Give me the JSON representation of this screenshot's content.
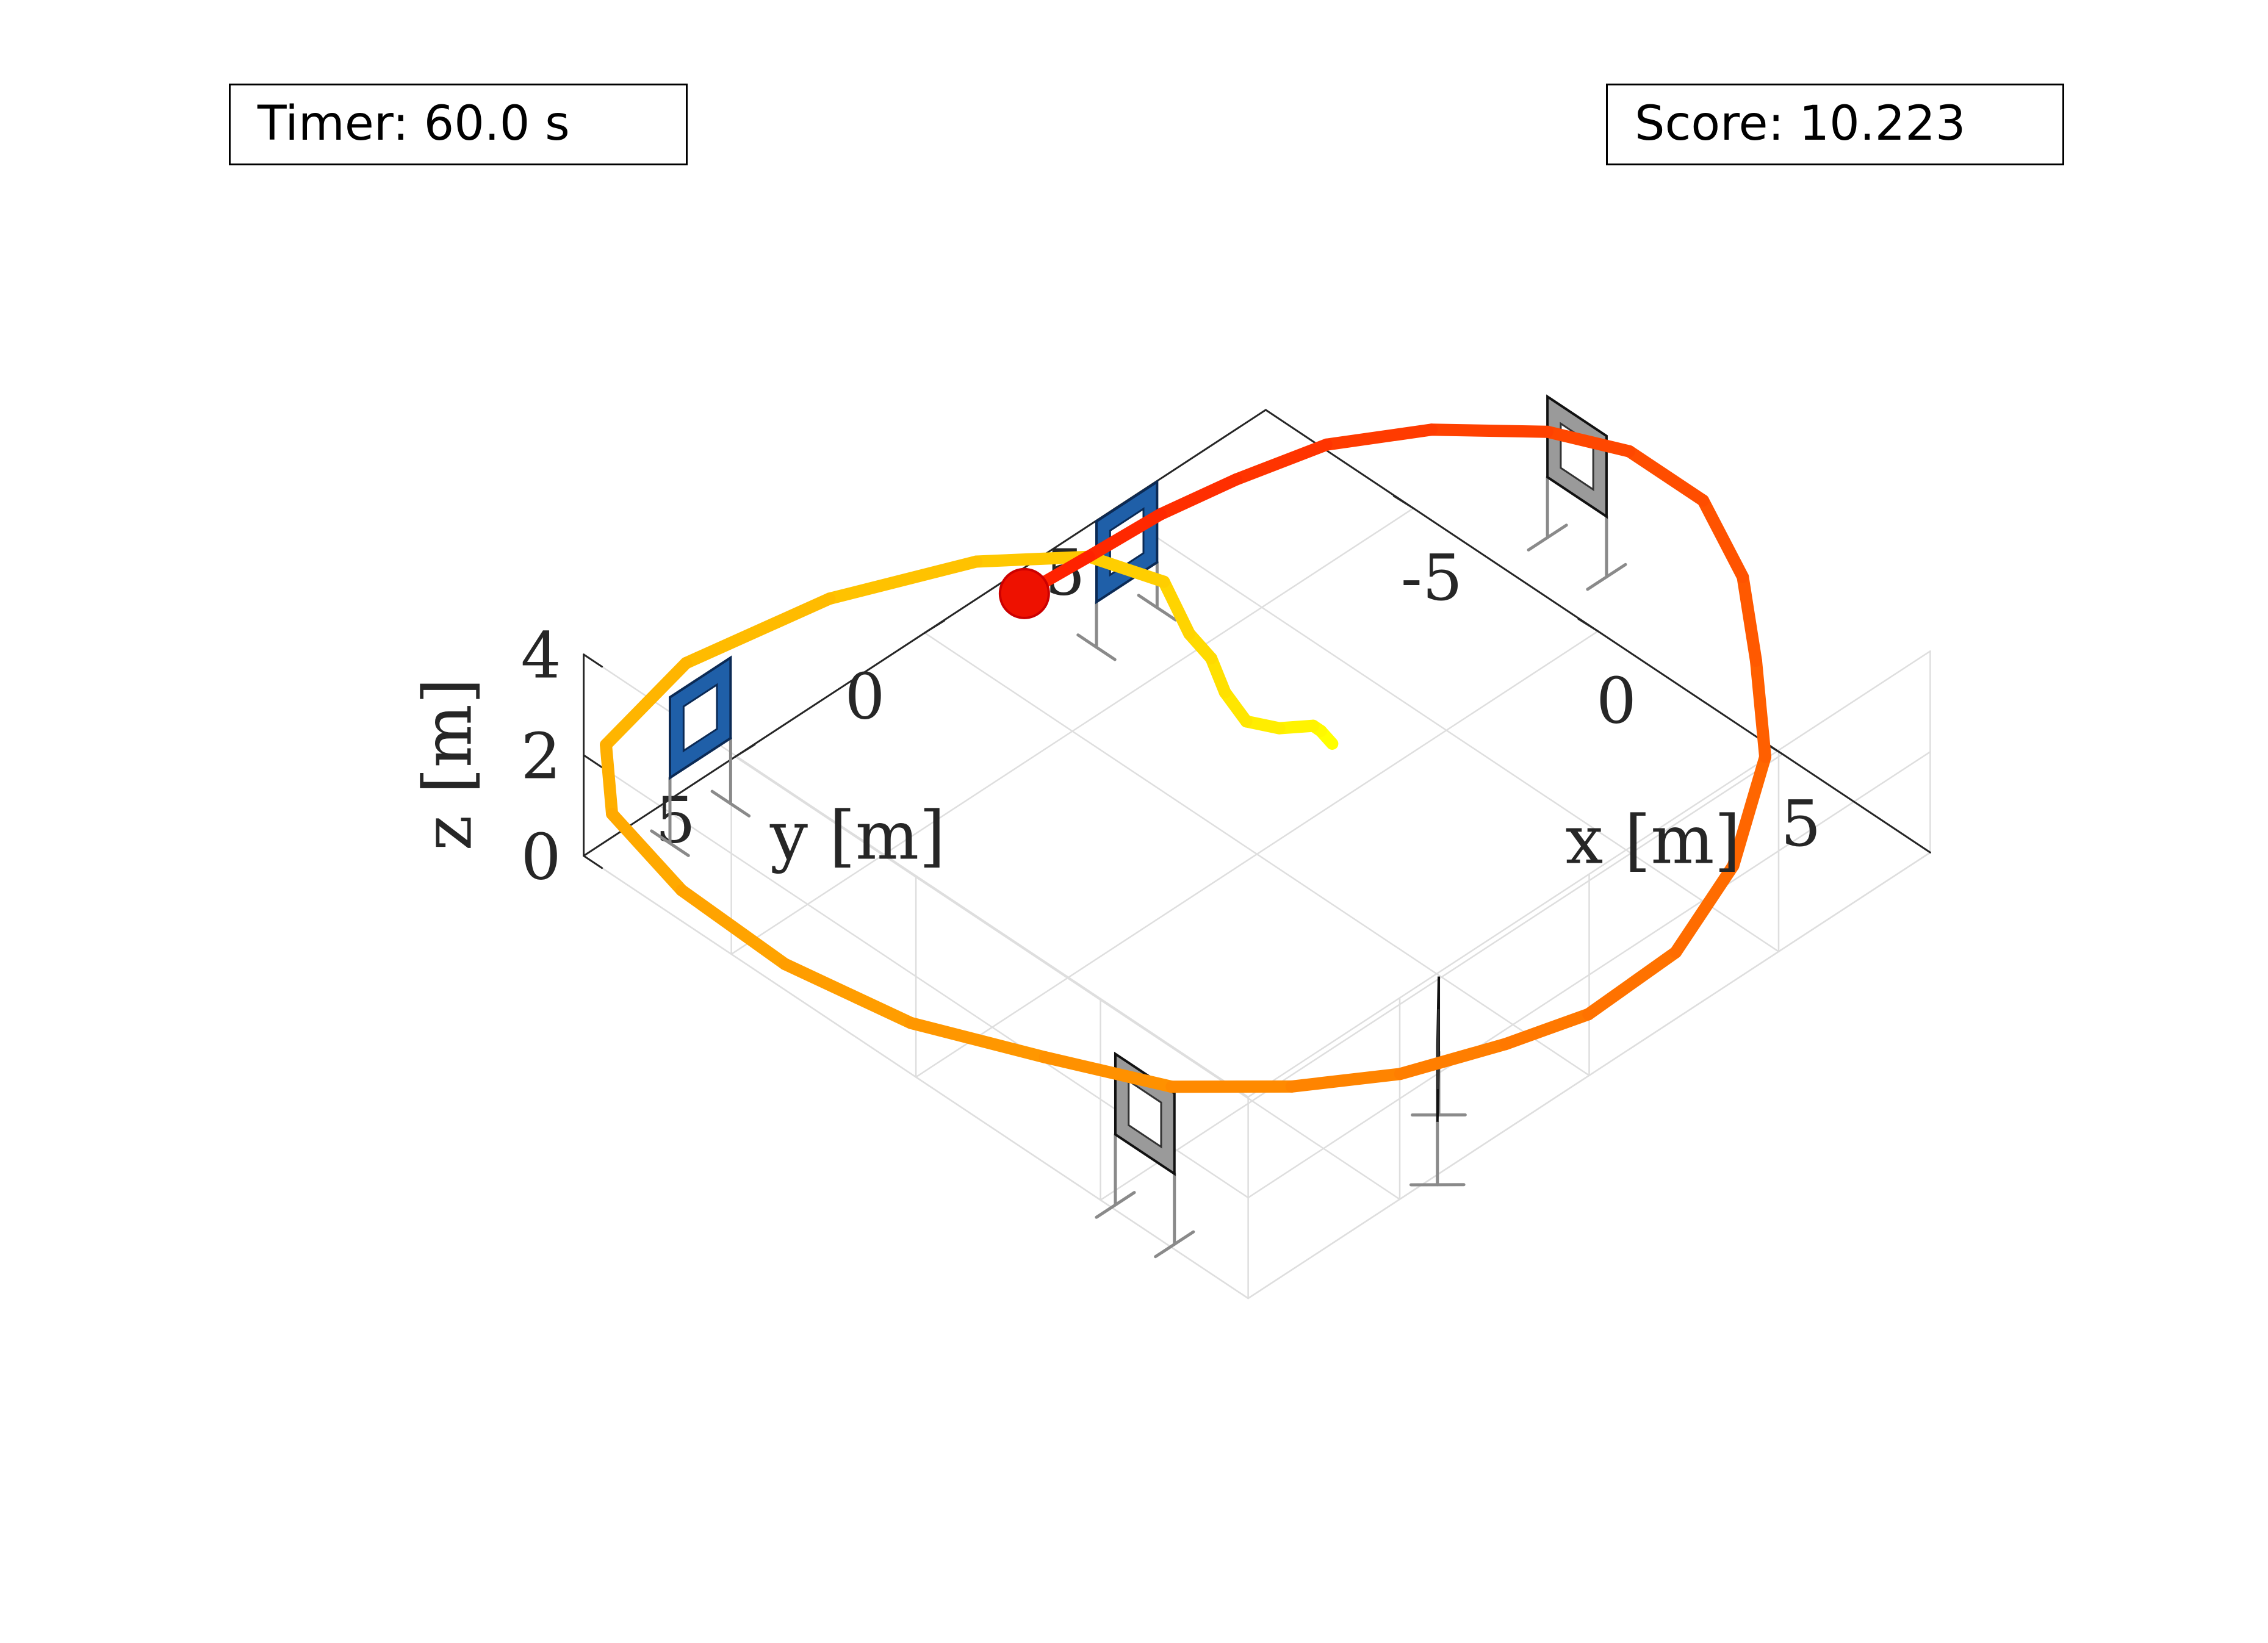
{
  "hud": {
    "timer_label": "Timer: 60.0 s",
    "score_label": "Score: 10.223"
  },
  "chart_data": {
    "type": "line3d",
    "title": "",
    "xlabel": "x [m]",
    "ylabel": "y [m]",
    "zlabel": "z [m]",
    "xlim": [
      -9,
      9
    ],
    "ylim": [
      -9,
      9
    ],
    "zlim": [
      0,
      4
    ],
    "xticks": [
      {
        "v": -5,
        "label": "-5"
      },
      {
        "v": 0,
        "label": "0"
      },
      {
        "v": 5,
        "label": "5"
      }
    ],
    "yticks": [
      {
        "v": -5,
        "label": "-5"
      },
      {
        "v": 0,
        "label": "0"
      },
      {
        "v": 5,
        "label": "5"
      }
    ],
    "zticks": [
      {
        "v": 0,
        "label": "0"
      },
      {
        "v": 2,
        "label": "2"
      },
      {
        "v": 4,
        "label": "4"
      }
    ],
    "grid": true,
    "trajectory": {
      "colormap": "autumn (yellow to red, by time)",
      "x": [
        0.5,
        0.5,
        0.6,
        0.3,
        -0.8,
        -2.2,
        -3.6,
        -4.5,
        -5.6,
        -6.6,
        -7.6,
        -8.5,
        -9.0,
        -8.5,
        -7.0,
        -4.5,
        -1.7,
        1.2,
        3.7,
        5.8,
        7.3,
        8.5,
        9.3,
        9.8,
        9.7,
        8.9,
        7.2,
        5.0,
        3.0,
        1.0,
        -1.0,
        -2.5,
        -4.2,
        -5.2,
        -5.8,
        -6.1,
        -6.3,
        -6.3
      ],
      "y": [
        -1.5,
        -1.2,
        -0.9,
        -0.3,
        -0.5,
        -1.3,
        -2.3,
        -2.6,
        -3.0,
        -2.0,
        0.0,
        3.0,
        6.3,
        8.9,
        10.2,
        10.8,
        10.8,
        10.3,
        9.2,
        7.9,
        6.2,
        4.5,
        2.5,
        0.8,
        -1.6,
        -3.9,
        -6.4,
        -8.3,
        -9.9,
        -10.8,
        -10.8,
        -10.1,
        -8.7,
        -6.9,
        -5.1,
        -3.4,
        -1.7,
        0.0
      ],
      "z": [
        1.7,
        2.1,
        2.4,
        2.5,
        2.0,
        1.5,
        1.0,
        0.9,
        1.2,
        1.7,
        2.1,
        2.4,
        2.5,
        2.4,
        2.4,
        2.4,
        2.3,
        2.3,
        2.3,
        2.1,
        2.0,
        2.0,
        2.0,
        2.0,
        2.0,
        2.2,
        2.3,
        2.2,
        2.1,
        2.2,
        2.2,
        2.2,
        2.1,
        2.2,
        2.1,
        2.1,
        2.0,
        2.1
      ]
    },
    "current_position": {
      "x": -6.3,
      "y": 0.0,
      "z": 2.1,
      "color": "#ee1100"
    },
    "gates": [
      {
        "type": "blue-square",
        "x": -6.4,
        "y": -2.8,
        "z": 1.7,
        "yaw_deg": 90
      },
      {
        "type": "thin-gray",
        "x": -1.8,
        "y": -10.2,
        "z": 2.0,
        "yaw_deg": 0
      },
      {
        "type": "wide-gray",
        "x": 8.5,
        "y": 3.5,
        "z": 2.0,
        "yaw_deg": 45
      },
      {
        "type": "thin-gray",
        "x": 6.1,
        "y": 8.9,
        "z": 2.2,
        "yaw_deg": 0
      },
      {
        "type": "blue-square",
        "x": -8.1,
        "y": 6.8,
        "z": 2.1,
        "yaw_deg": 90
      }
    ],
    "colors": {
      "grid": "#dedede",
      "axis": "#262626",
      "gate_blue": "#1f5fa8",
      "gate_gray": "#8a8a8a",
      "trajectory_start": "#ffff00",
      "trajectory_end": "#ff2200"
    }
  }
}
